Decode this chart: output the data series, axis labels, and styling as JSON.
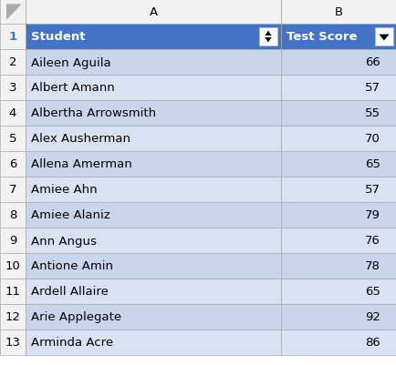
{
  "rows": [
    {
      "row_num": "1",
      "student": "Student",
      "score": "Test Score",
      "is_header": true
    },
    {
      "row_num": "2",
      "student": "Aileen Aguila",
      "score": "66",
      "is_header": false
    },
    {
      "row_num": "3",
      "student": "Albert Amann",
      "score": "57",
      "is_header": false
    },
    {
      "row_num": "4",
      "student": "Albertha Arrowsmith",
      "score": "55",
      "is_header": false
    },
    {
      "row_num": "5",
      "student": "Alex Ausherman",
      "score": "70",
      "is_header": false
    },
    {
      "row_num": "6",
      "student": "Allena Amerman",
      "score": "65",
      "is_header": false
    },
    {
      "row_num": "7",
      "student": "Amiee Ahn",
      "score": "57",
      "is_header": false
    },
    {
      "row_num": "8",
      "student": "Amiee Alaniz",
      "score": "79",
      "is_header": false
    },
    {
      "row_num": "9",
      "student": "Ann Angus",
      "score": "76",
      "is_header": false
    },
    {
      "row_num": "10",
      "student": "Antione Amin",
      "score": "78",
      "is_header": false
    },
    {
      "row_num": "11",
      "student": "Ardell Allaire",
      "score": "65",
      "is_header": false
    },
    {
      "row_num": "12",
      "student": "Arie Applegate",
      "score": "92",
      "is_header": false
    },
    {
      "row_num": "13",
      "student": "Arminda Acre",
      "score": "86",
      "is_header": false
    }
  ],
  "header_bg": "#4472C4",
  "header_fg": "#FFFFFF",
  "data_bg_odd": "#C9D5EA",
  "data_bg_even": "#D9E2F3",
  "row_num_bg": "#F2F2F2",
  "col_header_bg": "#F2F2F2",
  "col_header_fg": "#000000",
  "border_color": "#AAAAAA",
  "grid_bg": "#FFFFFF",
  "font_size": 9.5
}
